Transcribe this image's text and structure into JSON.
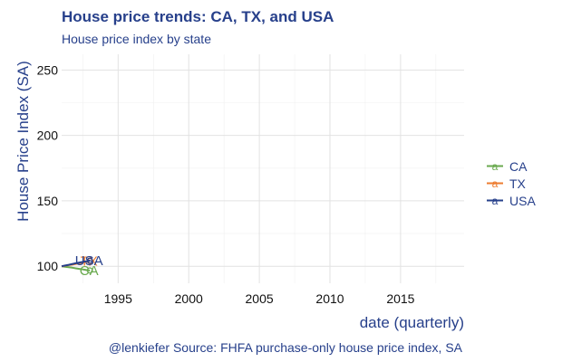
{
  "chart_data": {
    "type": "line",
    "title": "House price trends: CA, TX, and USA",
    "subtitle": "House price index by state",
    "xlabel": "date (quarterly)",
    "ylabel": "House Price Index (SA)",
    "caption": "@lenkiefer Source: FHFA purchase-only house price index, SA",
    "xlim": [
      1991,
      2019.5
    ],
    "ylim": [
      87,
      262
    ],
    "x_ticks": [
      "1995",
      "2000",
      "2005",
      "2010",
      "2015"
    ],
    "y_ticks": [
      "100",
      "150",
      "200",
      "250"
    ],
    "grid": true,
    "legend": "right",
    "series": [
      {
        "name": "CA",
        "color": "#6aaa4f",
        "label": "CA",
        "x": [
          1991.0,
          1991.25,
          1991.5,
          1991.75,
          1992.0,
          1992.25,
          1992.5,
          1992.75,
          1993.0
        ],
        "values": [
          100,
          99.6,
          99.3,
          98.9,
          98.4,
          98.0,
          97.6,
          97.1,
          96.8
        ]
      },
      {
        "name": "TX",
        "color": "#ed7d31",
        "label": "TX",
        "x": [
          1991.0,
          1991.25,
          1991.5,
          1991.75,
          1992.0,
          1992.25,
          1992.5,
          1992.75,
          1993.0
        ],
        "values": [
          100,
          100.4,
          100.9,
          101.3,
          101.8,
          102.3,
          102.9,
          103.4,
          104.0
        ]
      },
      {
        "name": "USA",
        "color": "#27408b",
        "label": "USA",
        "x": [
          1991.0,
          1991.25,
          1991.5,
          1991.75,
          1992.0,
          1992.25,
          1992.5,
          1992.75,
          1993.0
        ],
        "values": [
          100,
          100.6,
          101.1,
          101.7,
          102.3,
          102.8,
          103.4,
          103.8,
          104.3
        ]
      }
    ]
  }
}
